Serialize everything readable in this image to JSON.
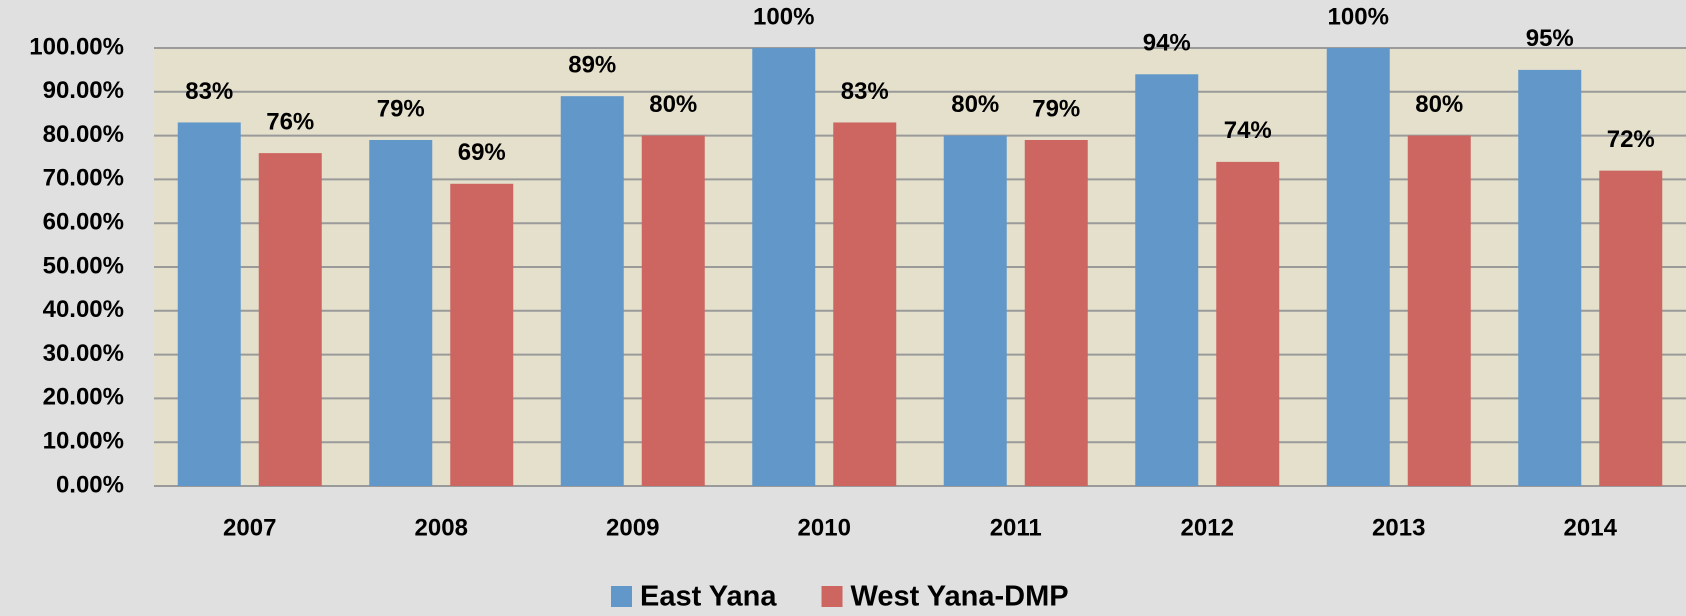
{
  "chart_data": {
    "type": "bar",
    "categories": [
      "2007",
      "2008",
      "2009",
      "2010",
      "2011",
      "2012",
      "2013",
      "2014"
    ],
    "series": [
      {
        "name": "East Yana",
        "color": "#6197c9",
        "values": [
          83,
          79,
          89,
          100,
          80,
          94,
          100,
          95
        ],
        "value_labels": [
          "83%",
          "79%",
          "89%",
          "100%",
          "80%",
          "94%",
          "100%",
          "95%"
        ]
      },
      {
        "name": "West Yana-DMP",
        "color": "#cd6560",
        "values": [
          76,
          69,
          80,
          83,
          79,
          74,
          80,
          72
        ],
        "value_labels": [
          "76%",
          "69%",
          "80%",
          "83%",
          "79%",
          "74%",
          "80%",
          "72%"
        ]
      }
    ],
    "ylim": [
      0,
      100
    ],
    "yticks": [
      {
        "value": 0,
        "label": "0.00%"
      },
      {
        "value": 10,
        "label": "10.00%"
      },
      {
        "value": 20,
        "label": "20.00%"
      },
      {
        "value": 30,
        "label": "30.00%"
      },
      {
        "value": 40,
        "label": "40.00%"
      },
      {
        "value": 50,
        "label": "50.00%"
      },
      {
        "value": 60,
        "label": "60.00%"
      },
      {
        "value": 70,
        "label": "70.00%"
      },
      {
        "value": 80,
        "label": "80.00%"
      },
      {
        "value": 90,
        "label": "90.00%"
      },
      {
        "value": 100,
        "label": "100.00%"
      }
    ],
    "grid": true,
    "legend": "bottom"
  }
}
